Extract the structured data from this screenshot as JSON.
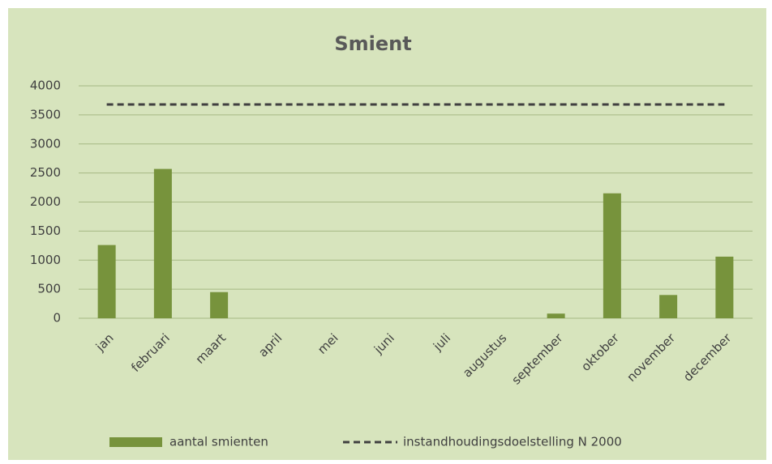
{
  "chart_data": {
    "type": "bar",
    "title": "Smient",
    "categories": [
      "jan",
      "februari",
      "maart",
      "april",
      "mei",
      "juni",
      "juli",
      "augustus",
      "september",
      "oktober",
      "november",
      "december"
    ],
    "series": [
      {
        "name": "aantal smienten",
        "type": "bar",
        "color": "#77933c",
        "values": [
          1260,
          2570,
          450,
          0,
          0,
          0,
          0,
          0,
          80,
          2150,
          400,
          1060
        ]
      },
      {
        "name": "instandhoudingsdoelstelling N 2000",
        "type": "line",
        "dashed": true,
        "color": "#404040",
        "values": [
          3680,
          3680,
          3680,
          3680,
          3680,
          3680,
          3680,
          3680,
          3680,
          3680,
          3680,
          3680
        ]
      }
    ],
    "ylim": [
      0,
      4000
    ],
    "yticks": [
      0,
      500,
      1000,
      1500,
      2000,
      2500,
      3000,
      3500,
      4000
    ],
    "grid": true,
    "legend": "bottom"
  }
}
